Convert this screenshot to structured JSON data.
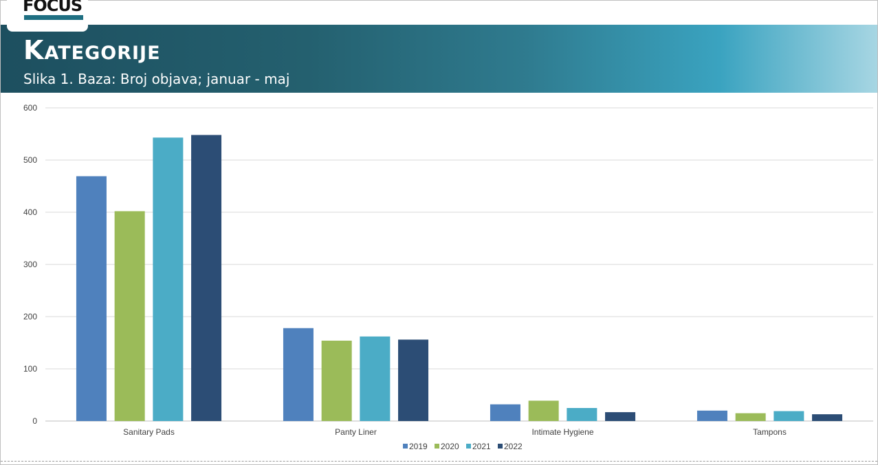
{
  "header": {
    "title": "Kategorije",
    "subtitle": "Slika 1. Baza: Broj objava; januar - maj",
    "logo_text": "FOCUS"
  },
  "colors": {
    "banner_dark": "#1d4f5f",
    "banner_light": "#3aa3c0",
    "gridline": "#d9d9d9"
  },
  "chart_data": {
    "type": "bar",
    "categories": [
      "Sanitary Pads",
      "Panty Liner",
      "Intimate Hygiene",
      "Tampons"
    ],
    "series": [
      {
        "name": "2019",
        "color": "#4f81bd",
        "values": [
          469,
          178,
          32,
          20
        ]
      },
      {
        "name": "2020",
        "color": "#9bbb59",
        "values": [
          402,
          154,
          39,
          15
        ]
      },
      {
        "name": "2021",
        "color": "#4bacc6",
        "values": [
          543,
          162,
          25,
          19
        ]
      },
      {
        "name": "2022",
        "color": "#2c4d75",
        "values": [
          548,
          156,
          17,
          13
        ]
      }
    ],
    "ylim": [
      0,
      600
    ],
    "yticks": [
      0,
      100,
      200,
      300,
      400,
      500,
      600
    ],
    "grid": true,
    "legend": "bottom-center"
  }
}
